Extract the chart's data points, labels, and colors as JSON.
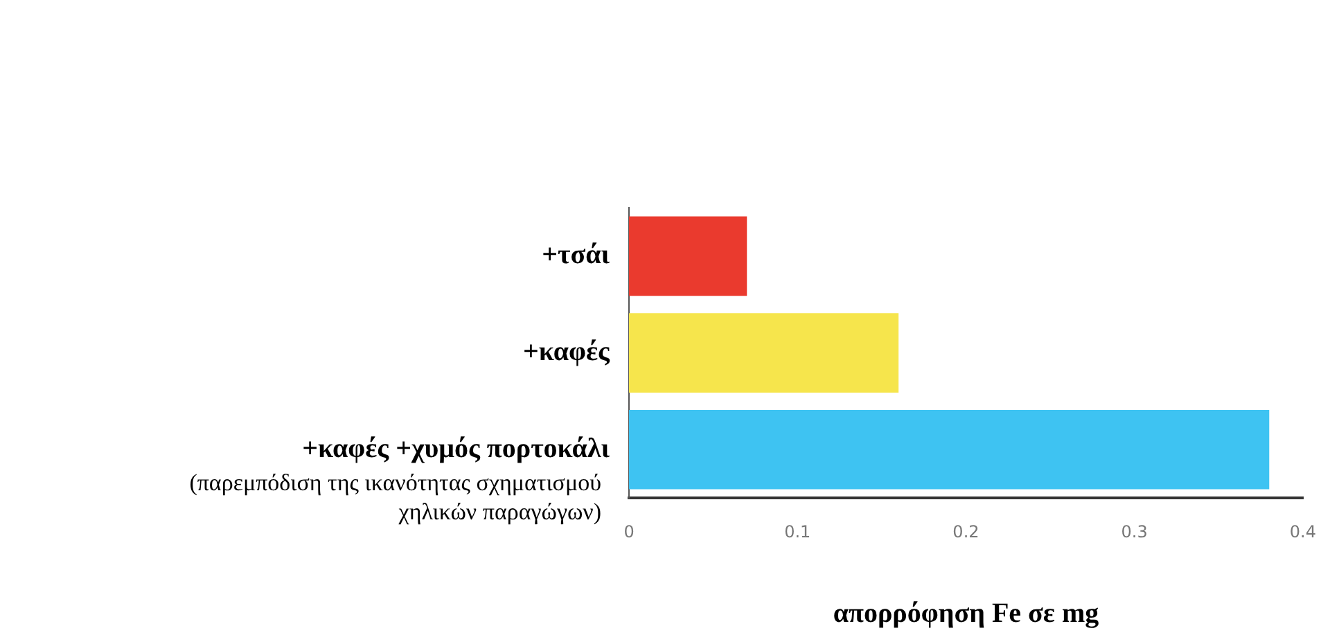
{
  "chart_data": {
    "type": "bar",
    "orientation": "horizontal",
    "categories": [
      "+τσάι",
      "+καφές",
      "+καφές +χυμός πορτοκάλι"
    ],
    "values": [
      0.07,
      0.16,
      0.38
    ],
    "colors": [
      "#ea3a2e",
      "#f6e54c",
      "#3ec3f2"
    ],
    "xlim": [
      0,
      0.4
    ],
    "xticks": [
      0,
      0.1,
      0.2,
      0.3,
      0.4
    ],
    "xlabel": "απορρόφηση Fe σε mg",
    "annotations": [
      "(παρεμπόδιση της ικανότητας σχηματισμού χηλικών παραγώγων)"
    ],
    "grid": false,
    "legend": false
  }
}
